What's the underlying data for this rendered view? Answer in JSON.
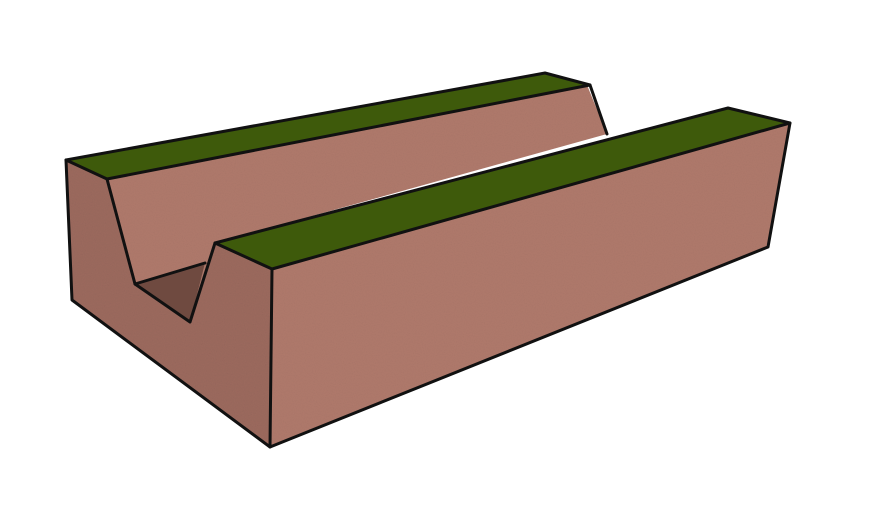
{
  "colors": {
    "background": "#ffffff",
    "soil": "#b07a6c",
    "soil_shade": "#9c6a5e",
    "groove_shadow": "#6f4a40",
    "grass": "#3e5a0b",
    "outline": "#111111"
  }
}
